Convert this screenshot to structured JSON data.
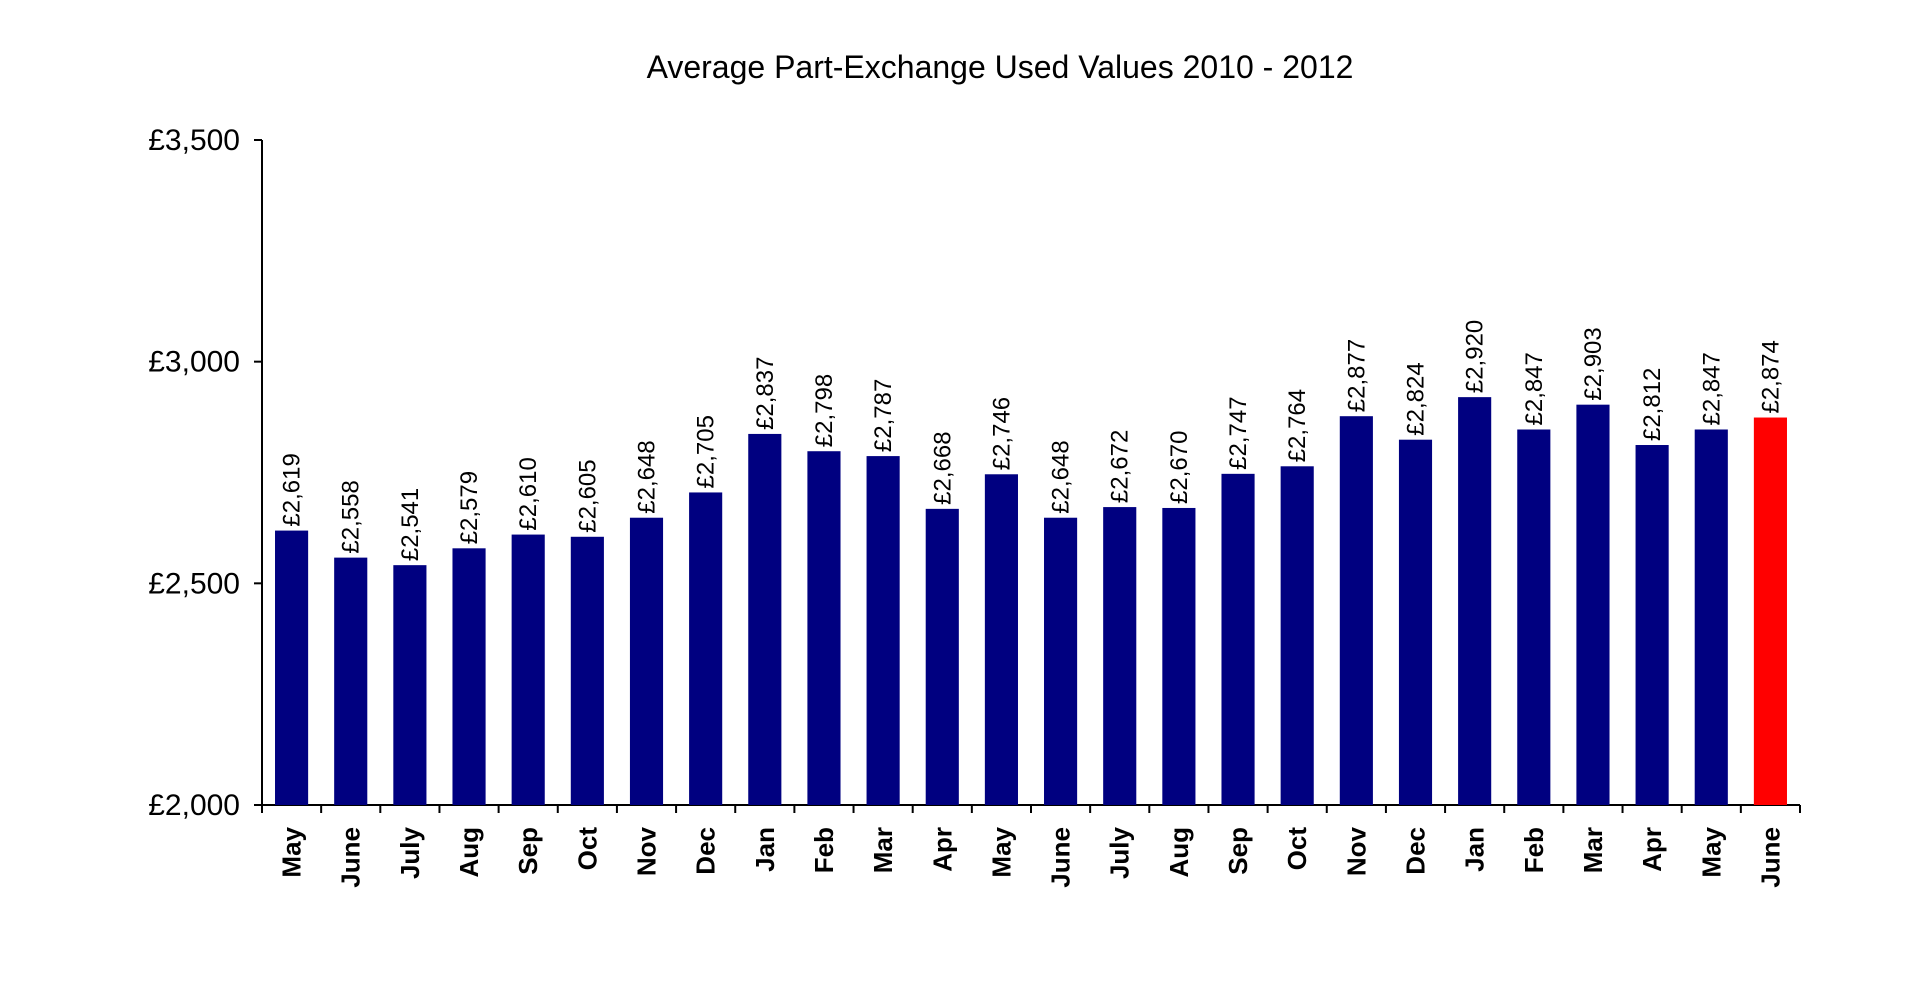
{
  "chart_data": {
    "type": "bar",
    "title": "Average Part-Exchange Used Values 2010 - 2012",
    "xlabel": "",
    "ylabel": "",
    "ylim": [
      2000,
      3500
    ],
    "yticks": [
      2000,
      2500,
      3000,
      3500
    ],
    "ytick_labels": [
      "£2,000",
      "£2,500",
      "£3,000",
      "£3,500"
    ],
    "grid": false,
    "legend": "none",
    "categories": [
      "May",
      "June",
      "July",
      "Aug",
      "Sep",
      "Oct",
      "Nov",
      "Dec",
      "Jan",
      "Feb",
      "Mar",
      "Apr",
      "May",
      "June",
      "July",
      "Aug",
      "Sep",
      "Oct",
      "Nov",
      "Dec",
      "Jan",
      "Feb",
      "Mar",
      "Apr",
      "May",
      "June"
    ],
    "values": [
      2619,
      2558,
      2541,
      2579,
      2610,
      2605,
      2648,
      2705,
      2837,
      2798,
      2787,
      2668,
      2746,
      2648,
      2672,
      2670,
      2747,
      2764,
      2877,
      2824,
      2920,
      2847,
      2903,
      2812,
      2847,
      2874
    ],
    "value_labels": [
      "£2,619",
      "£2,558",
      "£2,541",
      "£2,579",
      "£2,610",
      "£2,605",
      "£2,648",
      "£2,705",
      "£2,837",
      "£2,798",
      "£2,787",
      "£2,668",
      "£2,746",
      "£2,648",
      "£2,672",
      "£2,670",
      "£2,747",
      "£2,764",
      "£2,877",
      "£2,824",
      "£2,920",
      "£2,847",
      "£2,903",
      "£2,812",
      "£2,847",
      "£2,874"
    ],
    "bar_color": "#000080",
    "highlight_color": "#ff0000",
    "highlight_index": 25
  }
}
